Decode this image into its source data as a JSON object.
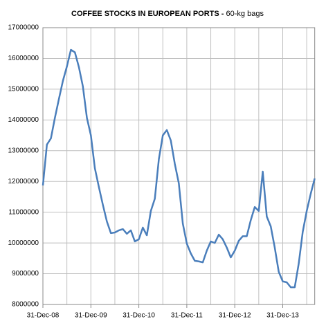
{
  "chart_data": {
    "type": "line",
    "title": "COFFEE STOCKS IN EUROPEAN PORTS -",
    "title_unit": "60-kg bags",
    "categories": [
      "31-Dec-08",
      null,
      null,
      null,
      null,
      null,
      null,
      null,
      null,
      null,
      null,
      null,
      "31-Dec-09",
      null,
      null,
      null,
      null,
      null,
      null,
      null,
      null,
      null,
      null,
      null,
      "31-Dec-10",
      null,
      null,
      null,
      null,
      null,
      null,
      null,
      null,
      null,
      null,
      null,
      "31-Dec-11",
      null,
      null,
      null,
      null,
      null,
      null,
      null,
      null,
      null,
      null,
      null,
      "31-Dec-12",
      null,
      null,
      null,
      null,
      null,
      null,
      null,
      null,
      null,
      null,
      null,
      "31-Dec-13",
      null,
      null,
      null,
      null,
      null,
      null,
      null,
      null
    ],
    "series": [
      {
        "name": "Coffee stocks",
        "color": "#4a7ebb",
        "values": [
          11870000,
          13200000,
          13400000,
          14070000,
          14680000,
          15270000,
          15740000,
          16280000,
          16200000,
          15720000,
          15090000,
          14070000,
          13500000,
          12430000,
          11820000,
          11240000,
          10700000,
          10320000,
          10340000,
          10410000,
          10450000,
          10300000,
          10410000,
          10050000,
          10120000,
          10500000,
          10250000,
          11040000,
          11440000,
          12720000,
          13500000,
          13670000,
          13330000,
          12570000,
          11940000,
          10630000,
          9980000,
          9660000,
          9420000,
          9400000,
          9370000,
          9750000,
          10050000,
          10000000,
          10270000,
          10120000,
          9850000,
          9530000,
          9750000,
          10070000,
          10220000,
          10220000,
          10740000,
          11170000,
          11040000,
          12320000,
          10860000,
          10540000,
          9850000,
          9060000,
          8750000,
          8720000,
          8560000,
          8560000,
          9330000,
          10360000,
          11040000,
          11600000,
          12100000
        ]
      }
    ],
    "ylim": [
      8000000,
      17000000
    ],
    "yticks": [
      8000000,
      9000000,
      10000000,
      11000000,
      12000000,
      13000000,
      14000000,
      15000000,
      16000000,
      17000000
    ],
    "grid": true
  }
}
